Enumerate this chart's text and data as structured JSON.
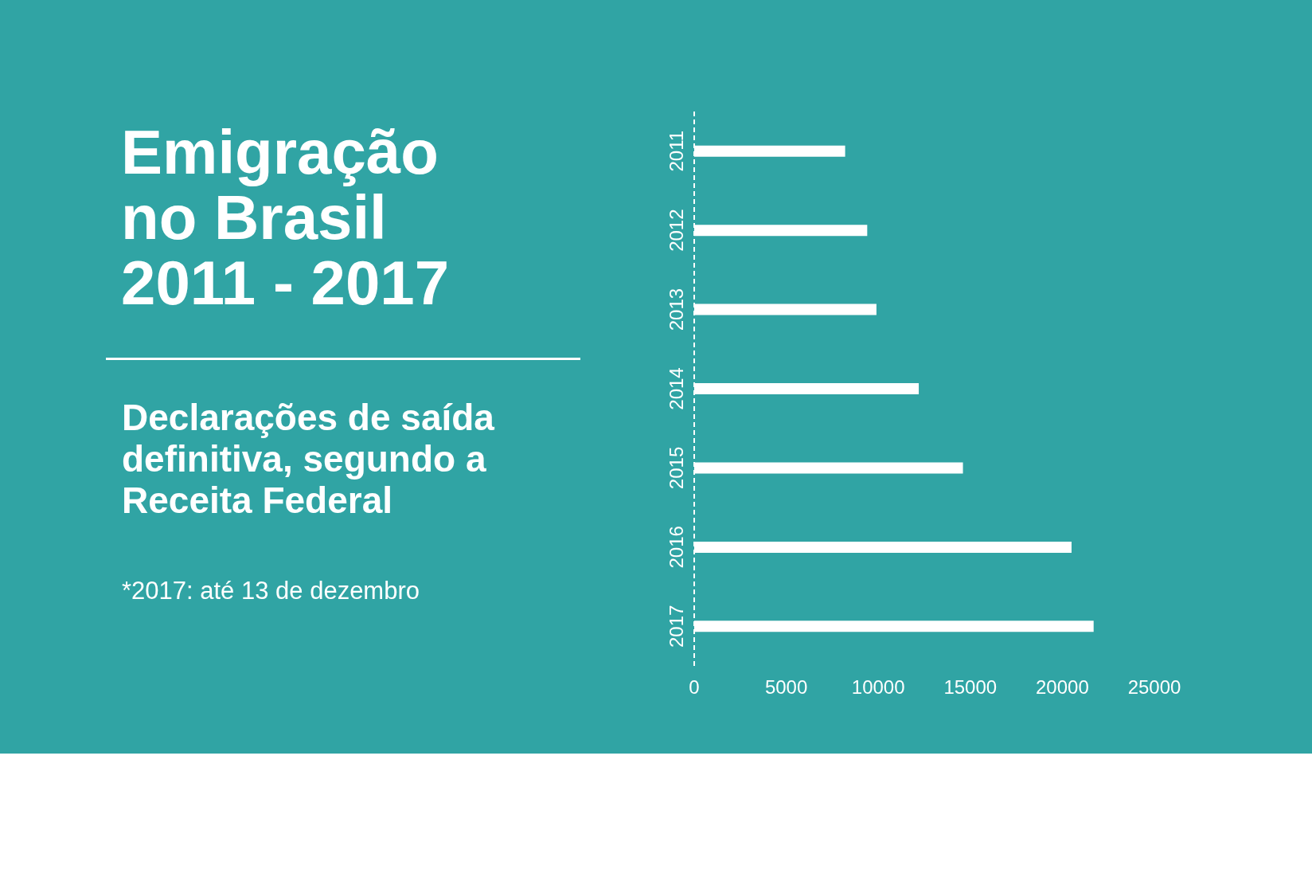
{
  "chart_data": {
    "type": "bar",
    "orientation": "horizontal",
    "title": "Emigração no Brasil 2011 - 2017",
    "subtitle": "Declarações de saída definitiva, segundo a Receita Federal",
    "annotations": [
      "*2017: até 13 de dezembro"
    ],
    "categories": [
      "2011",
      "2012",
      "2013",
      "2014",
      "2015",
      "2016",
      "2017"
    ],
    "values": [
      8200,
      9400,
      9900,
      12200,
      14600,
      20500,
      21700
    ],
    "color": "#ffffff",
    "xlim": [
      0,
      25000
    ],
    "xticks": [
      0,
      5000,
      10000,
      15000,
      20000,
      25000
    ],
    "grid": false,
    "legend": false
  }
}
